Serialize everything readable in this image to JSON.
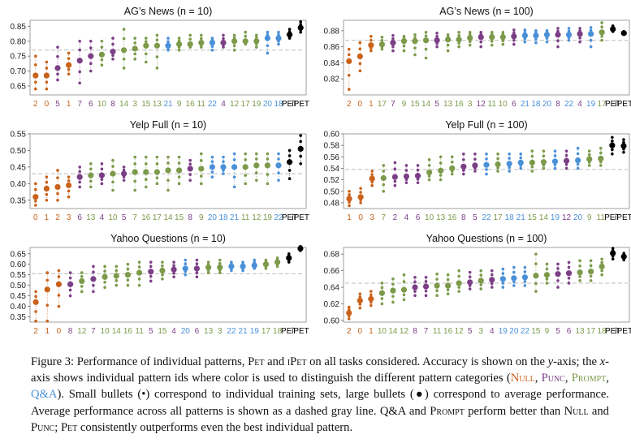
{
  "colors": {
    "null": "#c9621a",
    "punc": "#7b3f86",
    "prompt": "#7c9a4a",
    "qa": "#4a90d9",
    "pet": "#000000",
    "avg_line": "#bdbdbd",
    "whisker": "#e3a23a"
  },
  "chart_data": [
    {
      "type": "scatter",
      "title": "AG’s News (n = 10)",
      "ylim": [
        0.62,
        0.87
      ],
      "yticks": [
        "0.65",
        "0.70",
        "0.75",
        "0.80",
        "0.85"
      ],
      "avg": 0.77,
      "categories": [
        "2",
        "0",
        "5",
        "1",
        "7",
        "6",
        "10",
        "8",
        "14",
        "3",
        "15",
        "13",
        "21",
        "9",
        "16",
        "11",
        "22",
        "4",
        "12",
        "17",
        "19",
        "20",
        "18",
        "PET",
        "iPET"
      ],
      "groups": [
        "null",
        "null",
        "punc",
        "null",
        "punc",
        "punc",
        "prompt",
        "punc",
        "prompt",
        "prompt",
        "prompt",
        "prompt",
        "qa",
        "prompt",
        "prompt",
        "prompt",
        "qa",
        "punc",
        "prompt",
        "prompt",
        "prompt",
        "qa",
        "qa",
        "pet",
        "pet"
      ],
      "means": [
        0.685,
        0.685,
        0.71,
        0.72,
        0.735,
        0.75,
        0.755,
        0.765,
        0.77,
        0.775,
        0.785,
        0.785,
        0.785,
        0.79,
        0.79,
        0.795,
        0.795,
        0.795,
        0.8,
        0.8,
        0.8,
        0.81,
        0.81,
        0.822,
        0.845
      ],
      "mins": [
        0.64,
        0.64,
        0.67,
        0.69,
        0.66,
        0.7,
        0.72,
        0.74,
        0.71,
        0.74,
        0.73,
        0.71,
        0.77,
        0.77,
        0.78,
        0.78,
        0.77,
        0.78,
        0.77,
        0.79,
        0.78,
        0.76,
        0.79,
        0.81,
        0.83
      ],
      "maxs": [
        0.75,
        0.73,
        0.78,
        0.76,
        0.8,
        0.8,
        0.8,
        0.81,
        0.84,
        0.81,
        0.81,
        0.82,
        0.81,
        0.81,
        0.82,
        0.82,
        0.81,
        0.82,
        0.82,
        0.83,
        0.82,
        0.83,
        0.83,
        0.84,
        0.865
      ]
    },
    {
      "type": "scatter",
      "title": "AG’s News (n = 100)",
      "ylim": [
        0.8,
        0.893
      ],
      "yticks": [
        "0.82",
        "0.84",
        "0.86",
        "0.88"
      ],
      "avg": 0.868,
      "categories": [
        "2",
        "0",
        "1",
        "17",
        "7",
        "9",
        "15",
        "14",
        "5",
        "13",
        "16",
        "3",
        "12",
        "11",
        "10",
        "6",
        "21",
        "18",
        "20",
        "8",
        "22",
        "4",
        "19",
        "17",
        "PET",
        "iPET"
      ],
      "groups": [
        "null",
        "null",
        "null",
        "prompt",
        "punc",
        "prompt",
        "prompt",
        "prompt",
        "punc",
        "prompt",
        "prompt",
        "prompt",
        "punc",
        "prompt",
        "prompt",
        "punc",
        "qa",
        "qa",
        "qa",
        "punc",
        "qa",
        "punc",
        "qa",
        "prompt",
        "pet",
        "pet"
      ],
      "means": [
        0.842,
        0.848,
        0.862,
        0.863,
        0.865,
        0.867,
        0.867,
        0.868,
        0.868,
        0.869,
        0.869,
        0.871,
        0.872,
        0.872,
        0.872,
        0.873,
        0.874,
        0.874,
        0.875,
        0.875,
        0.875,
        0.876,
        0.876,
        0.878,
        0.882,
        0.877
      ],
      "mins": [
        0.807,
        0.83,
        0.855,
        0.857,
        0.855,
        0.855,
        0.85,
        0.846,
        0.86,
        0.855,
        0.86,
        0.862,
        0.86,
        0.862,
        0.863,
        0.863,
        0.866,
        0.865,
        0.866,
        0.86,
        0.868,
        0.866,
        0.86,
        0.868,
        0.879,
        0.876
      ],
      "maxs": [
        0.857,
        0.865,
        0.873,
        0.872,
        0.874,
        0.873,
        0.875,
        0.878,
        0.877,
        0.875,
        0.878,
        0.878,
        0.878,
        0.878,
        0.878,
        0.881,
        0.881,
        0.88,
        0.88,
        0.883,
        0.883,
        0.883,
        0.884,
        0.89,
        0.886,
        0.879
      ]
    },
    {
      "type": "scatter",
      "title": "Yelp Full (n = 10)",
      "ylim": [
        0.325,
        0.55
      ],
      "yticks": [
        "0.35",
        "0.40",
        "0.45",
        "0.50",
        "0.55"
      ],
      "avg": 0.43,
      "categories": [
        "0",
        "1",
        "2",
        "3",
        "6",
        "13",
        "4",
        "10",
        "5",
        "7",
        "16",
        "17",
        "14",
        "15",
        "8",
        "9",
        "20",
        "18",
        "21",
        "11",
        "12",
        "19",
        "22",
        "PET",
        "iPET"
      ],
      "groups": [
        "null",
        "null",
        "null",
        "null",
        "punc",
        "prompt",
        "punc",
        "prompt",
        "punc",
        "prompt",
        "prompt",
        "prompt",
        "prompt",
        "prompt",
        "punc",
        "prompt",
        "qa",
        "qa",
        "qa",
        "prompt",
        "prompt",
        "prompt",
        "qa",
        "pet",
        "pet"
      ],
      "means": [
        0.36,
        0.385,
        0.39,
        0.395,
        0.42,
        0.425,
        0.425,
        0.43,
        0.43,
        0.435,
        0.435,
        0.435,
        0.44,
        0.44,
        0.445,
        0.445,
        0.45,
        0.45,
        0.45,
        0.45,
        0.455,
        0.455,
        0.455,
        0.465,
        0.505
      ],
      "mins": [
        0.335,
        0.35,
        0.35,
        0.36,
        0.39,
        0.39,
        0.4,
        0.38,
        0.41,
        0.38,
        0.39,
        0.4,
        0.38,
        0.4,
        0.41,
        0.4,
        0.42,
        0.43,
        0.39,
        0.4,
        0.41,
        0.4,
        0.41,
        0.415,
        0.46
      ],
      "maxs": [
        0.4,
        0.42,
        0.44,
        0.42,
        0.45,
        0.46,
        0.46,
        0.47,
        0.45,
        0.48,
        0.48,
        0.48,
        0.48,
        0.48,
        0.47,
        0.49,
        0.48,
        0.48,
        0.49,
        0.49,
        0.49,
        0.49,
        0.49,
        0.5,
        0.545
      ]
    },
    {
      "type": "scatter",
      "title": "Yelp Full (n = 100)",
      "ylim": [
        0.47,
        0.6
      ],
      "yticks": [
        "0.48",
        "0.50",
        "0.52",
        "0.54",
        "0.56",
        "0.58",
        "0.60"
      ],
      "avg": 0.538,
      "categories": [
        "1",
        "0",
        "3",
        "7",
        "2",
        "4",
        "6",
        "10",
        "13",
        "16",
        "8",
        "5",
        "22",
        "17",
        "18",
        "21",
        "15",
        "14",
        "19",
        "12",
        "20",
        "9",
        "11",
        "PET",
        "iPET"
      ],
      "groups": [
        "null",
        "null",
        "null",
        "prompt",
        "punc",
        "punc",
        "punc",
        "prompt",
        "prompt",
        "prompt",
        "punc",
        "punc",
        "qa",
        "prompt",
        "qa",
        "qa",
        "prompt",
        "prompt",
        "qa",
        "punc",
        "qa",
        "prompt",
        "prompt",
        "pet",
        "pet"
      ],
      "means": [
        0.487,
        0.49,
        0.522,
        0.523,
        0.525,
        0.526,
        0.527,
        0.533,
        0.536,
        0.54,
        0.543,
        0.545,
        0.546,
        0.547,
        0.548,
        0.55,
        0.55,
        0.551,
        0.552,
        0.553,
        0.554,
        0.556,
        0.557,
        0.58,
        0.579
      ],
      "mins": [
        0.475,
        0.48,
        0.51,
        0.5,
        0.51,
        0.515,
        0.515,
        0.52,
        0.52,
        0.53,
        0.53,
        0.535,
        0.53,
        0.535,
        0.535,
        0.54,
        0.535,
        0.54,
        0.54,
        0.54,
        0.54,
        0.545,
        0.545,
        0.565,
        0.568
      ],
      "maxs": [
        0.5,
        0.505,
        0.535,
        0.545,
        0.55,
        0.545,
        0.545,
        0.555,
        0.56,
        0.56,
        0.565,
        0.565,
        0.565,
        0.565,
        0.565,
        0.565,
        0.57,
        0.57,
        0.57,
        0.57,
        0.575,
        0.57,
        0.575,
        0.594,
        0.59
      ]
    },
    {
      "type": "scatter",
      "title": "Yahoo Questions (n = 10)",
      "ylim": [
        0.325,
        0.68
      ],
      "yticks": [
        "0.35",
        "0.40",
        "0.45",
        "0.50",
        "0.55",
        "0.60",
        "0.65"
      ],
      "avg": 0.555,
      "categories": [
        "2",
        "1",
        "0",
        "8",
        "12",
        "7",
        "10",
        "14",
        "16",
        "11",
        "5",
        "15",
        "4",
        "20",
        "6",
        "13",
        "3",
        "22",
        "21",
        "19",
        "17",
        "18",
        "PET",
        "iPET"
      ],
      "groups": [
        "null",
        "null",
        "null",
        "punc",
        "prompt",
        "punc",
        "prompt",
        "prompt",
        "prompt",
        "prompt",
        "punc",
        "prompt",
        "punc",
        "qa",
        "punc",
        "prompt",
        "prompt",
        "qa",
        "qa",
        "qa",
        "prompt",
        "prompt",
        "pet",
        "pet"
      ],
      "means": [
        0.42,
        0.48,
        0.505,
        0.505,
        0.52,
        0.53,
        0.54,
        0.545,
        0.55,
        0.56,
        0.565,
        0.57,
        0.575,
        0.58,
        0.58,
        0.585,
        0.585,
        0.59,
        0.59,
        0.595,
        0.6,
        0.61,
        0.63,
        0.675
      ],
      "mins": [
        0.33,
        0.33,
        0.4,
        0.45,
        0.47,
        0.47,
        0.49,
        0.5,
        0.5,
        0.5,
        0.52,
        0.53,
        0.54,
        0.55,
        0.54,
        0.56,
        0.56,
        0.57,
        0.57,
        0.58,
        0.58,
        0.59,
        0.61,
        0.665
      ],
      "maxs": [
        0.47,
        0.56,
        0.57,
        0.56,
        0.56,
        0.59,
        0.59,
        0.59,
        0.6,
        0.61,
        0.61,
        0.61,
        0.61,
        0.62,
        0.62,
        0.61,
        0.62,
        0.61,
        0.61,
        0.62,
        0.62,
        0.63,
        0.65,
        0.685
      ]
    },
    {
      "type": "scatter",
      "title": "Yahoo Questions (n = 100)",
      "ylim": [
        0.598,
        0.688
      ],
      "yticks": [
        "0.60",
        "0.62",
        "0.64",
        "0.66",
        "0.68"
      ],
      "avg": 0.645,
      "categories": [
        "2",
        "0",
        "1",
        "10",
        "14",
        "12",
        "8",
        "7",
        "11",
        "16",
        "12",
        "5",
        "3",
        "4",
        "19",
        "20",
        "22",
        "15",
        "9",
        "5",
        "6",
        "13",
        "17",
        "18",
        "PET",
        "iPET"
      ],
      "groups": [
        "null",
        "null",
        "null",
        "prompt",
        "prompt",
        "prompt",
        "punc",
        "punc",
        "prompt",
        "prompt",
        "prompt",
        "punc",
        "prompt",
        "punc",
        "qa",
        "qa",
        "qa",
        "prompt",
        "prompt",
        "punc",
        "punc",
        "prompt",
        "prompt",
        "prompt",
        "pet",
        "pet"
      ],
      "means": [
        0.609,
        0.624,
        0.626,
        0.633,
        0.636,
        0.637,
        0.64,
        0.641,
        0.642,
        0.642,
        0.645,
        0.646,
        0.648,
        0.649,
        0.65,
        0.651,
        0.652,
        0.654,
        0.655,
        0.656,
        0.657,
        0.658,
        0.659,
        0.665,
        0.681,
        0.677
      ],
      "mins": [
        0.602,
        0.615,
        0.618,
        0.62,
        0.622,
        0.625,
        0.63,
        0.63,
        0.63,
        0.632,
        0.635,
        0.638,
        0.638,
        0.64,
        0.64,
        0.642,
        0.642,
        0.635,
        0.645,
        0.64,
        0.645,
        0.648,
        0.648,
        0.655,
        0.674,
        0.673
      ],
      "maxs": [
        0.616,
        0.632,
        0.635,
        0.645,
        0.65,
        0.655,
        0.652,
        0.652,
        0.656,
        0.655,
        0.66,
        0.658,
        0.66,
        0.66,
        0.662,
        0.664,
        0.664,
        0.68,
        0.668,
        0.668,
        0.67,
        0.672,
        0.672,
        0.674,
        0.687,
        0.681
      ]
    }
  ],
  "caption": {
    "p1": "Figure 3: Performance of individual patterns, ",
    "pet": "Pet",
    "p2": " and ",
    "ipet": "iPet",
    "p3": " on all tasks considered. Accuracy is shown on the ",
    "ylabel": "y",
    "p4": "-axis; the ",
    "xlabel": "x",
    "p5": "-axis shows individual pattern ids where color is used to distinguish the different pattern categories (",
    "null": "Null",
    "comma1": ", ",
    "punc": "Punc",
    "comma2": ", ",
    "prompt": "Prompt",
    "comma3": ", ",
    "qa": "Q&A",
    "p6": "). Small bullets (•) correspond to individual training sets, large bullets (●) correspond to average performance. Average performance across all patterns is shown as a dashed gray line. Q&A and ",
    "prompt2": "Prompt",
    "p7": " perform better than ",
    "null2": "Null",
    "p8": " and ",
    "punc2": "Punc",
    "p9": "; ",
    "pet2": "Pet",
    "p10": " consistently outperforms even the best individual pattern."
  }
}
